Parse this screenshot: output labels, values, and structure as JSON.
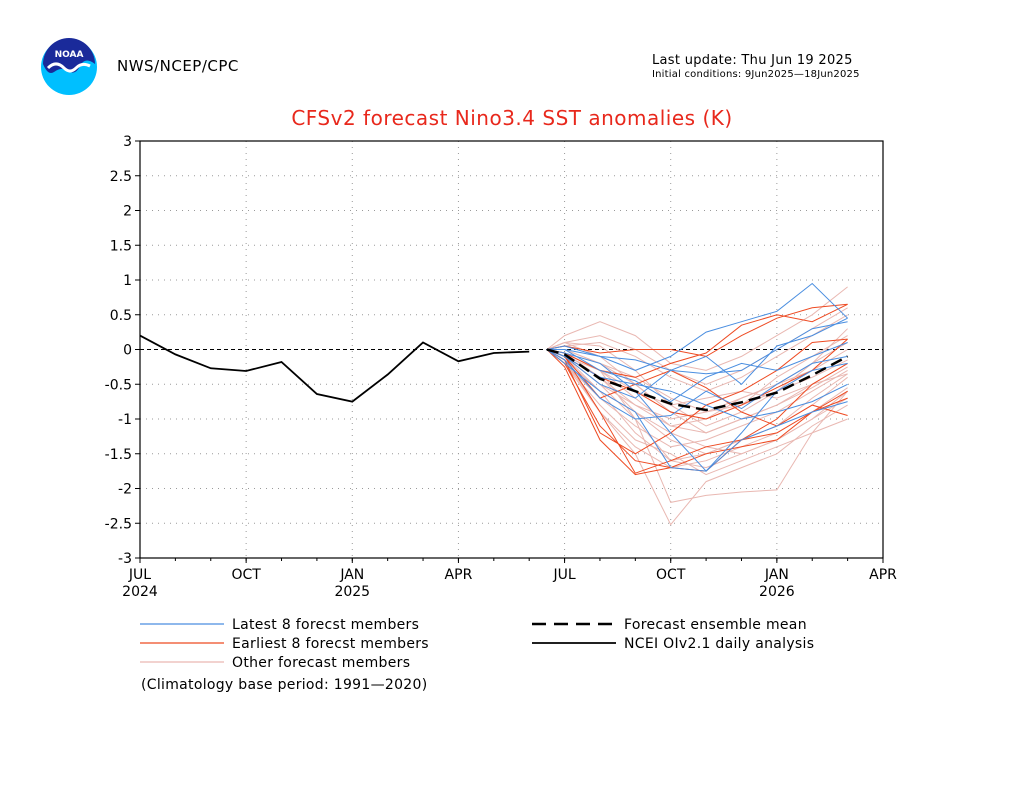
{
  "header": {
    "org": "NWS/NCEP/CPC",
    "last_update": "Last update: Thu Jun 19 2025",
    "initial_conditions": "Initial conditions: 9Jun2025—18Jun2025",
    "logo_text": "NOAA"
  },
  "footnote": "(Climatology base period: 1991—2020)",
  "chart_data": {
    "type": "line",
    "title": "CFSv2 forecast Nino3.4 SST anomalies (K)",
    "xlabel": "",
    "ylabel": "",
    "ylim": [
      -3,
      3
    ],
    "yticks": [
      3,
      2.5,
      2,
      1.5,
      1,
      0.5,
      0,
      -0.5,
      -1,
      -1.5,
      -2,
      -2.5,
      -3
    ],
    "ytick_labels": [
      "3",
      "2.5",
      "2",
      "1.5",
      "1",
      "0.5",
      "0",
      "-0.5",
      "-1",
      "-1.5",
      "-2",
      "-2.5",
      "-3"
    ],
    "xlim_months": [
      0,
      21
    ],
    "xticks": [
      {
        "m": 0,
        "label": "JUL",
        "year": "2024"
      },
      {
        "m": 3,
        "label": "OCT",
        "year": ""
      },
      {
        "m": 6,
        "label": "JAN",
        "year": "2025"
      },
      {
        "m": 9,
        "label": "APR",
        "year": ""
      },
      {
        "m": 12,
        "label": "JUL",
        "year": ""
      },
      {
        "m": 15,
        "label": "OCT",
        "year": ""
      },
      {
        "m": 18,
        "label": "JAN",
        "year": "2026"
      },
      {
        "m": 21,
        "label": "APR",
        "year": ""
      }
    ],
    "grid": true,
    "zero_line": "dashed",
    "colors": {
      "latest": "#4a8ee0",
      "earliest": "#ee4a22",
      "other": "#e9b8b2",
      "mean": "#000000",
      "analysis": "#000000",
      "title": "#e8281c"
    },
    "legend": {
      "placement": "bottom",
      "items": [
        {
          "key": "latest",
          "label": "Latest 8 forecst members",
          "style": "solid"
        },
        {
          "key": "earliest",
          "label": "Earliest 8 forecst members",
          "style": "solid"
        },
        {
          "key": "other",
          "label": "Other forecast members",
          "style": "solid"
        },
        {
          "key": "mean",
          "label": "Forecast ensemble mean",
          "style": "dashed"
        },
        {
          "key": "analysis",
          "label": "NCEI OIv2.1 daily analysis",
          "style": "solid"
        }
      ]
    },
    "observed": {
      "name": "NCEI OIv2.1 daily analysis",
      "x": [
        0,
        1,
        2,
        3,
        4,
        5,
        6,
        7,
        8,
        9,
        10,
        11
      ],
      "y": [
        0.2,
        -0.07,
        -0.27,
        -0.31,
        -0.18,
        -0.64,
        -0.75,
        -0.36,
        0.1,
        -0.17,
        -0.05,
        -0.03
      ]
    },
    "ensemble_mean": {
      "name": "Forecast ensemble mean",
      "x": [
        11.5,
        12,
        13,
        14,
        15,
        16,
        17,
        18,
        19,
        20
      ],
      "y": [
        0.0,
        -0.07,
        -0.42,
        -0.6,
        -0.78,
        -0.87,
        -0.76,
        -0.62,
        -0.37,
        -0.1
      ]
    },
    "members_x": [
      11.5,
      12,
      13,
      14,
      15,
      16,
      17,
      18,
      19,
      20
    ],
    "members_latest": [
      [
        0,
        0.0,
        -0.1,
        -0.3,
        -0.1,
        0.25,
        0.4,
        0.55,
        0.95,
        0.45
      ],
      [
        0,
        -0.1,
        -0.5,
        -0.7,
        -0.3,
        -0.35,
        -0.3,
        0.0,
        0.3,
        0.4
      ],
      [
        0,
        -0.05,
        -0.2,
        -0.6,
        -1.2,
        -1.75,
        -1.3,
        -1.1,
        -0.9,
        -0.75
      ],
      [
        0,
        -0.15,
        -0.7,
        -1.0,
        -0.95,
        -0.6,
        -0.85,
        -0.5,
        -0.2,
        -0.1
      ],
      [
        0,
        0.05,
        -0.1,
        -0.15,
        -0.3,
        -0.1,
        -0.5,
        0.05,
        0.2,
        0.45
      ],
      [
        0,
        -0.2,
        -0.6,
        -0.9,
        -1.7,
        -1.75,
        -1.2,
        -0.6,
        -0.3,
        -0.2
      ],
      [
        0,
        -0.1,
        -0.4,
        -0.5,
        -0.6,
        -0.8,
        -1.0,
        -0.9,
        -0.75,
        -0.5
      ],
      [
        0,
        0.0,
        -0.3,
        -0.45,
        -0.75,
        -0.4,
        -0.2,
        -0.3,
        -0.1,
        0.1
      ]
    ],
    "members_earliest": [
      [
        0,
        -0.05,
        -0.3,
        -0.4,
        -0.2,
        -0.05,
        0.35,
        0.5,
        0.4,
        0.65
      ],
      [
        0,
        -0.2,
        -1.1,
        -1.6,
        -1.7,
        -1.75,
        -1.3,
        -1.2,
        -0.9,
        -0.6
      ],
      [
        0,
        -0.1,
        -0.9,
        -1.78,
        -1.6,
        -1.4,
        -1.3,
        -1.0,
        -0.5,
        -0.2
      ],
      [
        0,
        -0.15,
        -1.2,
        -1.5,
        -1.2,
        -0.8,
        -0.6,
        -0.3,
        0.1,
        0.15
      ],
      [
        0,
        0.05,
        -0.05,
        0.0,
        0.0,
        -0.1,
        0.2,
        0.45,
        0.6,
        0.65
      ],
      [
        0,
        -0.1,
        -0.7,
        -0.5,
        -0.3,
        -0.55,
        -0.9,
        -1.1,
        -0.8,
        -0.95
      ],
      [
        0,
        -0.1,
        -0.4,
        -0.6,
        -0.9,
        -1.0,
        -0.8,
        -0.55,
        -0.3,
        0.15
      ],
      [
        0,
        -0.25,
        -1.3,
        -1.8,
        -1.7,
        -1.5,
        -1.4,
        -1.3,
        -0.9,
        -0.7
      ]
    ],
    "members_other": [
      [
        0,
        0.2,
        0.4,
        0.2,
        -0.2,
        -0.3,
        -0.1,
        0.2,
        0.5,
        0.9
      ],
      [
        0,
        0.1,
        0.05,
        -0.3,
        -0.8,
        -1.1,
        -0.9,
        -0.6,
        -0.2,
        0.3
      ],
      [
        0,
        -0.1,
        -0.6,
        -1.2,
        -1.6,
        -1.5,
        -1.3,
        -1.1,
        -0.7,
        -0.35
      ],
      [
        0,
        -0.05,
        -0.3,
        -1.0,
        -2.2,
        -2.1,
        -2.05,
        -2.02,
        -1.2,
        -0.6
      ],
      [
        0,
        -0.15,
        -0.9,
        -1.5,
        -2.52,
        -1.9,
        -1.7,
        -1.5,
        -1.1,
        -0.8
      ],
      [
        0,
        0.0,
        -0.2,
        -0.5,
        -0.9,
        -1.2,
        -1.0,
        -0.8,
        -0.5,
        -0.2
      ],
      [
        0,
        -0.2,
        -0.8,
        -1.3,
        -1.5,
        -1.8,
        -1.6,
        -1.4,
        -1.2,
        -1.0
      ],
      [
        0,
        0.05,
        0.1,
        -0.1,
        -0.4,
        -0.6,
        -0.4,
        -0.1,
        0.2,
        0.5
      ],
      [
        0,
        -0.1,
        -0.5,
        -0.8,
        -1.0,
        -0.9,
        -0.7,
        -0.5,
        -0.3,
        0.0
      ],
      [
        0,
        -0.1,
        -0.4,
        -0.9,
        -1.3,
        -1.5,
        -1.3,
        -1.1,
        -0.8,
        -0.4
      ],
      [
        0,
        0.1,
        0.2,
        0.0,
        -0.3,
        -0.5,
        -0.3,
        0.0,
        0.3,
        0.6
      ],
      [
        0,
        -0.2,
        -0.7,
        -1.1,
        -1.4,
        -1.3,
        -1.1,
        -0.9,
        -0.6,
        -0.3
      ],
      [
        0,
        -0.05,
        -0.3,
        -0.7,
        -1.1,
        -1.2,
        -1.0,
        -0.8,
        -0.55,
        -0.25
      ],
      [
        0,
        -0.15,
        -0.6,
        -0.9,
        -1.2,
        -1.4,
        -1.5,
        -1.3,
        -1.0,
        -0.7
      ],
      [
        0,
        0.0,
        -0.2,
        -0.4,
        -0.7,
        -0.9,
        -0.8,
        -0.6,
        -0.4,
        -0.15
      ],
      [
        0,
        -0.1,
        -0.5,
        -1.0,
        -1.6,
        -1.7,
        -1.5,
        -1.3,
        -1.0,
        -0.6
      ],
      [
        0,
        -0.05,
        -0.4,
        -0.8,
        -1.1,
        -1.0,
        -0.8,
        -0.4,
        -0.1,
        0.2
      ],
      [
        0,
        -0.2,
        -0.9,
        -1.4,
        -1.7,
        -1.6,
        -1.4,
        -1.2,
        -0.9,
        -0.55
      ],
      [
        0,
        0.1,
        -0.1,
        -0.5,
        -0.9,
        -1.0,
        -0.7,
        -0.5,
        -0.2,
        0.1
      ],
      [
        0,
        -0.1,
        -0.3,
        -0.6,
        -0.8,
        -0.7,
        -0.6,
        -0.7,
        -0.5,
        -0.35
      ]
    ]
  }
}
